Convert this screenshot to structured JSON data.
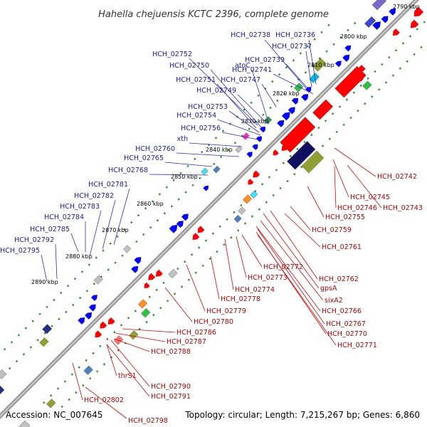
{
  "title": "Hahella chejuensis KCTC 2396, complete genome",
  "footer": {
    "accession": "Accession: NC_007645",
    "topology": "Topology: circular; Length: 7,215,267 bp; Genes: 6,860"
  },
  "colors": {
    "forward": "#0000ff",
    "reverse": "#ff0000",
    "backbone": "#888888",
    "ticks": "#228b22"
  },
  "kbp_ticks": [
    {
      "label": "2790 kbp",
      "pos": 2790
    },
    {
      "label": "2800 kbp",
      "pos": 2800
    },
    {
      "label": "2810 kbp",
      "pos": 2810
    },
    {
      "label": "2820 kbp",
      "pos": 2820
    },
    {
      "label": "2830 kbp",
      "pos": 2830
    },
    {
      "label": "2840 kbp",
      "pos": 2840
    },
    {
      "label": "2850 kbp",
      "pos": 2850
    },
    {
      "label": "2860 kbp",
      "pos": 2860
    },
    {
      "label": "2870 kbp",
      "pos": 2870
    },
    {
      "label": "2880 kbp",
      "pos": 2880
    },
    {
      "label": "2890 kbp",
      "pos": 2890
    }
  ],
  "forward_labels": [
    "HCH_02738",
    "HCH_02736",
    "HCH_02737",
    "HCH_02752",
    "HCH_02750",
    "atoC",
    "HCH_02739",
    "HCH_02741",
    "HCH_02751",
    "HCH_02747",
    "HCH_02749",
    "HCH_02753",
    "HCH_02754",
    "HCH_02756",
    "xth",
    "HCH_02760",
    "HCH_02765",
    "HCH_02768",
    "HCH_02781",
    "HCH_02782",
    "HCH_02783",
    "HCH_02784",
    "HCH_02785",
    "HCH_02792",
    "HCH_02795"
  ],
  "reverse_labels": [
    "HCH_02742",
    "HCH_02745",
    "HCH_02746",
    "HCH_02743",
    "HCH_02755",
    "HCH_02759",
    "HCH_02761",
    "HCH_02762",
    "gpsA",
    "sixA2",
    "HCH_02766",
    "HCH_02767",
    "HCH_02770",
    "HCH_02771",
    "HCH_02772",
    "HCH_02773",
    "HCH_02774",
    "HCH_02778",
    "HCH_02779",
    "HCH_02780",
    "HCH_02786",
    "HCH_02787",
    "HCH_02788",
    "thrS1",
    "HCH_02790",
    "HCH_02791",
    "HCH_02802",
    "HCH_02798"
  ]
}
